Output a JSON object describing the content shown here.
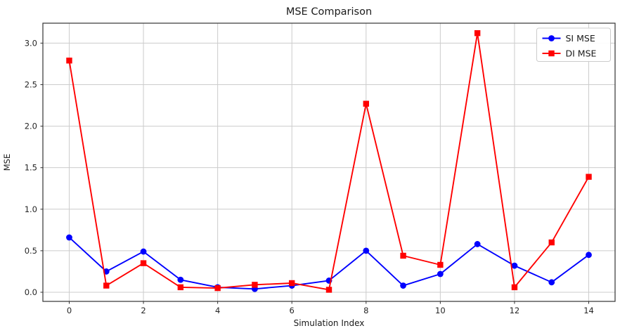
{
  "page": {
    "background": "#ffffff"
  },
  "chart_data": {
    "type": "line",
    "title": "MSE Comparison",
    "xlabel": "Simulation Index",
    "ylabel": "MSE",
    "x": [
      0,
      1,
      2,
      3,
      4,
      5,
      6,
      7,
      8,
      9,
      10,
      11,
      12,
      13,
      14
    ],
    "series": [
      {
        "name": "SI MSE",
        "color": "#0000ff",
        "marker": "circle",
        "values": [
          0.66,
          0.25,
          0.49,
          0.15,
          0.06,
          0.04,
          0.08,
          0.14,
          0.5,
          0.08,
          0.22,
          0.58,
          0.32,
          0.12,
          0.45
        ]
      },
      {
        "name": "DI MSE",
        "color": "#ff0000",
        "marker": "square",
        "values": [
          2.79,
          0.08,
          0.35,
          0.06,
          0.05,
          0.09,
          0.11,
          0.03,
          2.27,
          0.44,
          0.33,
          3.12,
          0.06,
          0.6,
          1.39
        ]
      }
    ],
    "xticks": [
      0,
      2,
      4,
      6,
      8,
      10,
      12,
      14
    ],
    "xtick_labels": [
      "0",
      "2",
      "4",
      "6",
      "8",
      "10",
      "12",
      "14"
    ],
    "yticks": [
      0.0,
      0.5,
      1.0,
      1.5,
      2.0,
      2.5,
      3.0
    ],
    "ytick_labels": [
      "0.0",
      "0.5",
      "1.0",
      "1.5",
      "2.0",
      "2.5",
      "3.0"
    ],
    "xlim": [
      -0.71,
      14.71
    ],
    "ylim": [
      -0.11,
      3.24
    ],
    "grid": true,
    "legend": {
      "position": "upper right"
    },
    "colors": {
      "grid": "#cccccc",
      "spine": "#333333",
      "tick_text": "#262626",
      "text": "#1a1a1a",
      "legend_border": "#cccccc",
      "legend_bg": "#ffffff"
    }
  }
}
